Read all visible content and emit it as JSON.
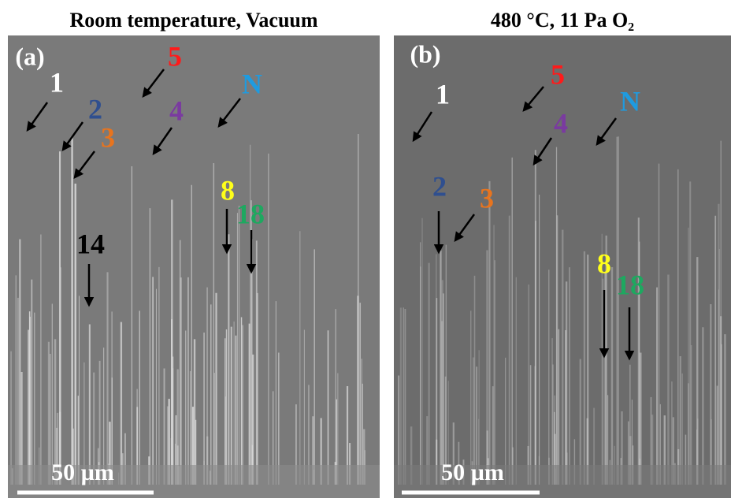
{
  "panels": [
    {
      "title": "Room temperature, Vacuum",
      "label": "(a)",
      "scale_bar": "50 µm",
      "markers": [
        {
          "text": "1",
          "color": "#ffffff"
        },
        {
          "text": "5",
          "color": "#ff1a1a"
        },
        {
          "text": "2",
          "color": "#2f4f8f"
        },
        {
          "text": "3",
          "color": "#e8741e"
        },
        {
          "text": "4",
          "color": "#7a3aa0"
        },
        {
          "text": "N",
          "color": "#1e9be0"
        },
        {
          "text": "8",
          "color": "#ffff1a"
        },
        {
          "text": "18",
          "color": "#1ea860"
        },
        {
          "text": "14",
          "color": "#000000"
        }
      ]
    },
    {
      "title": "480 °C, 11 Pa O₂",
      "label": "(b)",
      "scale_bar": "50 µm",
      "markers": [
        {
          "text": "1",
          "color": "#ffffff"
        },
        {
          "text": "5",
          "color": "#ff1a1a"
        },
        {
          "text": "4",
          "color": "#7a3aa0"
        },
        {
          "text": "N",
          "color": "#1e9be0"
        },
        {
          "text": "2",
          "color": "#2f4f8f"
        },
        {
          "text": "3",
          "color": "#e8741e"
        },
        {
          "text": "8",
          "color": "#ffff1a"
        },
        {
          "text": "18",
          "color": "#1ea860"
        }
      ]
    }
  ]
}
